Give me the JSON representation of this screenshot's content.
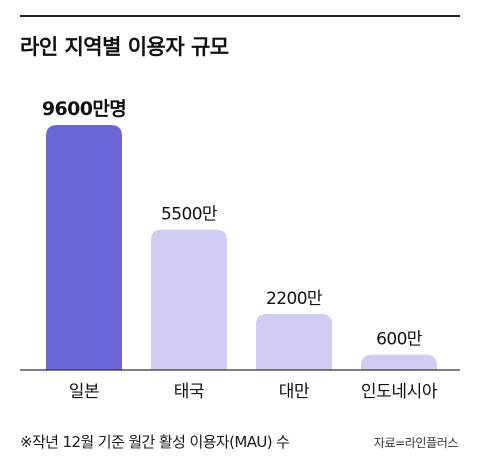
{
  "title": "라인 지역별 이용자 규모",
  "footnote": "※작년 12월 기준 월간 활성 이용자(MAU) 수",
  "source": "자료=라인플러스",
  "colors": {
    "highlight": "#6b66d6",
    "bar": "#cfcdf1",
    "axis": "#333333"
  },
  "chart_data": {
    "type": "bar",
    "categories": [
      "일본",
      "태국",
      "대만",
      "인도네시아"
    ],
    "values": [
      9600,
      5500,
      2200,
      600
    ],
    "data_labels": [
      "9600만명",
      "5500만",
      "2200만",
      "600만"
    ],
    "unit": "만명",
    "highlight_index": 0,
    "ylim": [
      0,
      10000
    ],
    "grid": false,
    "legend": "none"
  }
}
